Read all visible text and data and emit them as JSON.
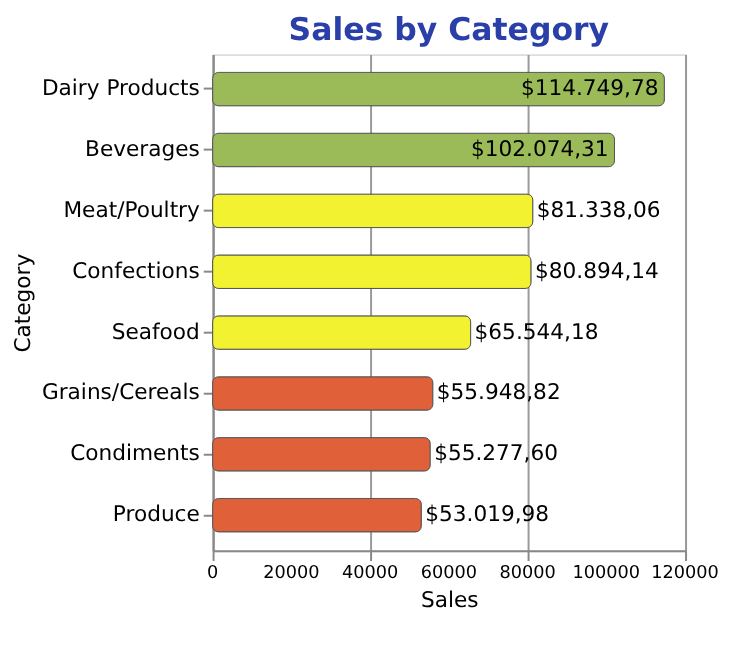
{
  "chart_data": {
    "type": "bar",
    "orientation": "horizontal",
    "title": "Sales by Category",
    "xlabel": "Sales",
    "ylabel": "Category",
    "categories": [
      "Dairy Products",
      "Beverages",
      "Meat/Poultry",
      "Confections",
      "Seafood",
      "Grains/Cereals",
      "Condiments",
      "Produce"
    ],
    "values": [
      114749.78,
      102074.31,
      81338.06,
      80894.14,
      65544.18,
      55948.82,
      55277.6,
      53019.98
    ],
    "colors": [
      "#9bbb59",
      "#9bbb59",
      "#f2f230",
      "#f2f230",
      "#f2f230",
      "#e0603a",
      "#e0603a",
      "#e0603a"
    ],
    "value_labels": [
      "$114.749,78",
      "$102.074,31",
      "$81.338,06",
      "$80.894,14",
      "$65.544,18",
      "$55.948,82",
      "$55.277,60",
      "$53.019,98"
    ],
    "xlim": [
      0,
      120000
    ],
    "xticks": [
      0,
      20000,
      40000,
      60000,
      80000,
      100000,
      120000
    ],
    "grid": "x"
  }
}
